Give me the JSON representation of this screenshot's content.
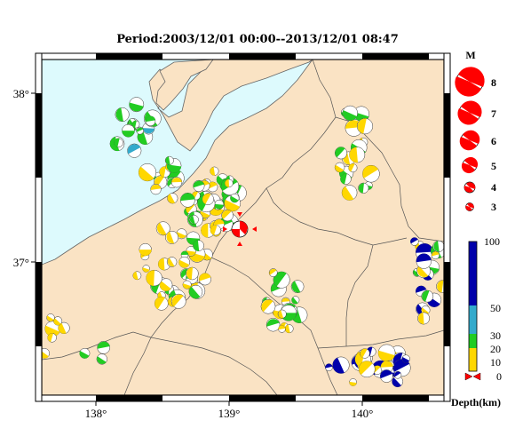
{
  "title": "Period:2003/12/01 00:00--2013/12/01 08:47",
  "map": {
    "lon_ticks": [
      "138°",
      "139°",
      "140°"
    ],
    "lat_ticks": [
      "38°",
      "37°"
    ],
    "land_color": "#fae3c4",
    "sea_color": "#ddfafd",
    "main_event_color": "#ff0000"
  },
  "magnitude_legend": {
    "title": "M",
    "items": [
      "8",
      "7",
      "6",
      "5",
      "4",
      "3"
    ]
  },
  "depth_legend": {
    "title": "Depth(km)",
    "ticks": [
      "100",
      "50",
      "30",
      "20",
      "10",
      "0"
    ],
    "colors": {
      "shallow": "#ffd700",
      "mid": "#22cc22",
      "deep": "#33aacc",
      "deepest": "#0000aa"
    }
  }
}
